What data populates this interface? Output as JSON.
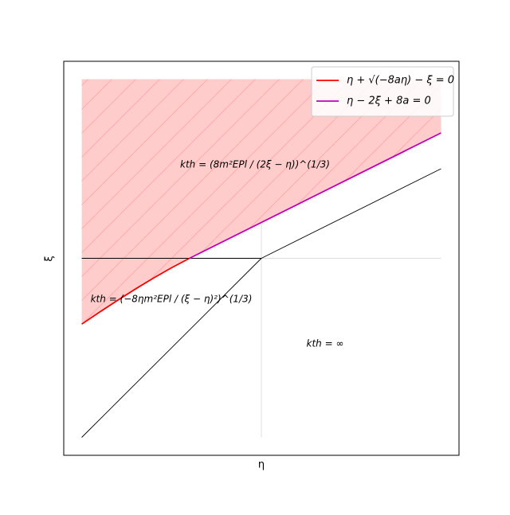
{
  "chart_data": {
    "type": "line",
    "xlabel": "η",
    "ylabel": "ξ",
    "xlim": [
      -1.1,
      1.1
    ],
    "ylim": [
      -1.1,
      1.1
    ],
    "series": [
      {
        "name": "η + √(−8aη) − ξ = 0",
        "color": "#ff0000",
        "x": [
          -1,
          -0.9,
          -0.8,
          -0.7,
          -0.6,
          -0.5,
          -0.4
        ],
        "values": [
          -0.3675,
          -0.3,
          -0.2343,
          -0.1708,
          -0.1101,
          -0.0528,
          0
        ]
      },
      {
        "name": "η − 2ξ + 8a = 0",
        "color": "#bf00bf",
        "x": [
          -0.4,
          1
        ],
        "values": [
          0,
          0.7
        ]
      }
    ],
    "lines": [
      {
        "color": "#000000",
        "x": [
          -1,
          0
        ],
        "values": [
          -1,
          0
        ]
      },
      {
        "color": "#000000",
        "x": [
          0,
          1
        ],
        "values": [
          0,
          0.5
        ]
      },
      {
        "color": "#000000",
        "x": [
          -1,
          0
        ],
        "values": [
          0,
          0
        ]
      }
    ],
    "reference_lines": {
      "color": "#dddddd",
      "x": 0,
      "y": 0,
      "extent": [
        -1,
        1
      ]
    },
    "shade": {
      "color": "#ffcccc",
      "hatch_color": "#ffaaaa",
      "top": 1
    },
    "annotations": [
      "kth = (8m²EPl / (2ξ − η))^(1/3)",
      "kth = (−8ηm²EPl / (ξ − η)²)^(1/3)",
      "kth = ∞"
    ],
    "legend": "upper right"
  }
}
